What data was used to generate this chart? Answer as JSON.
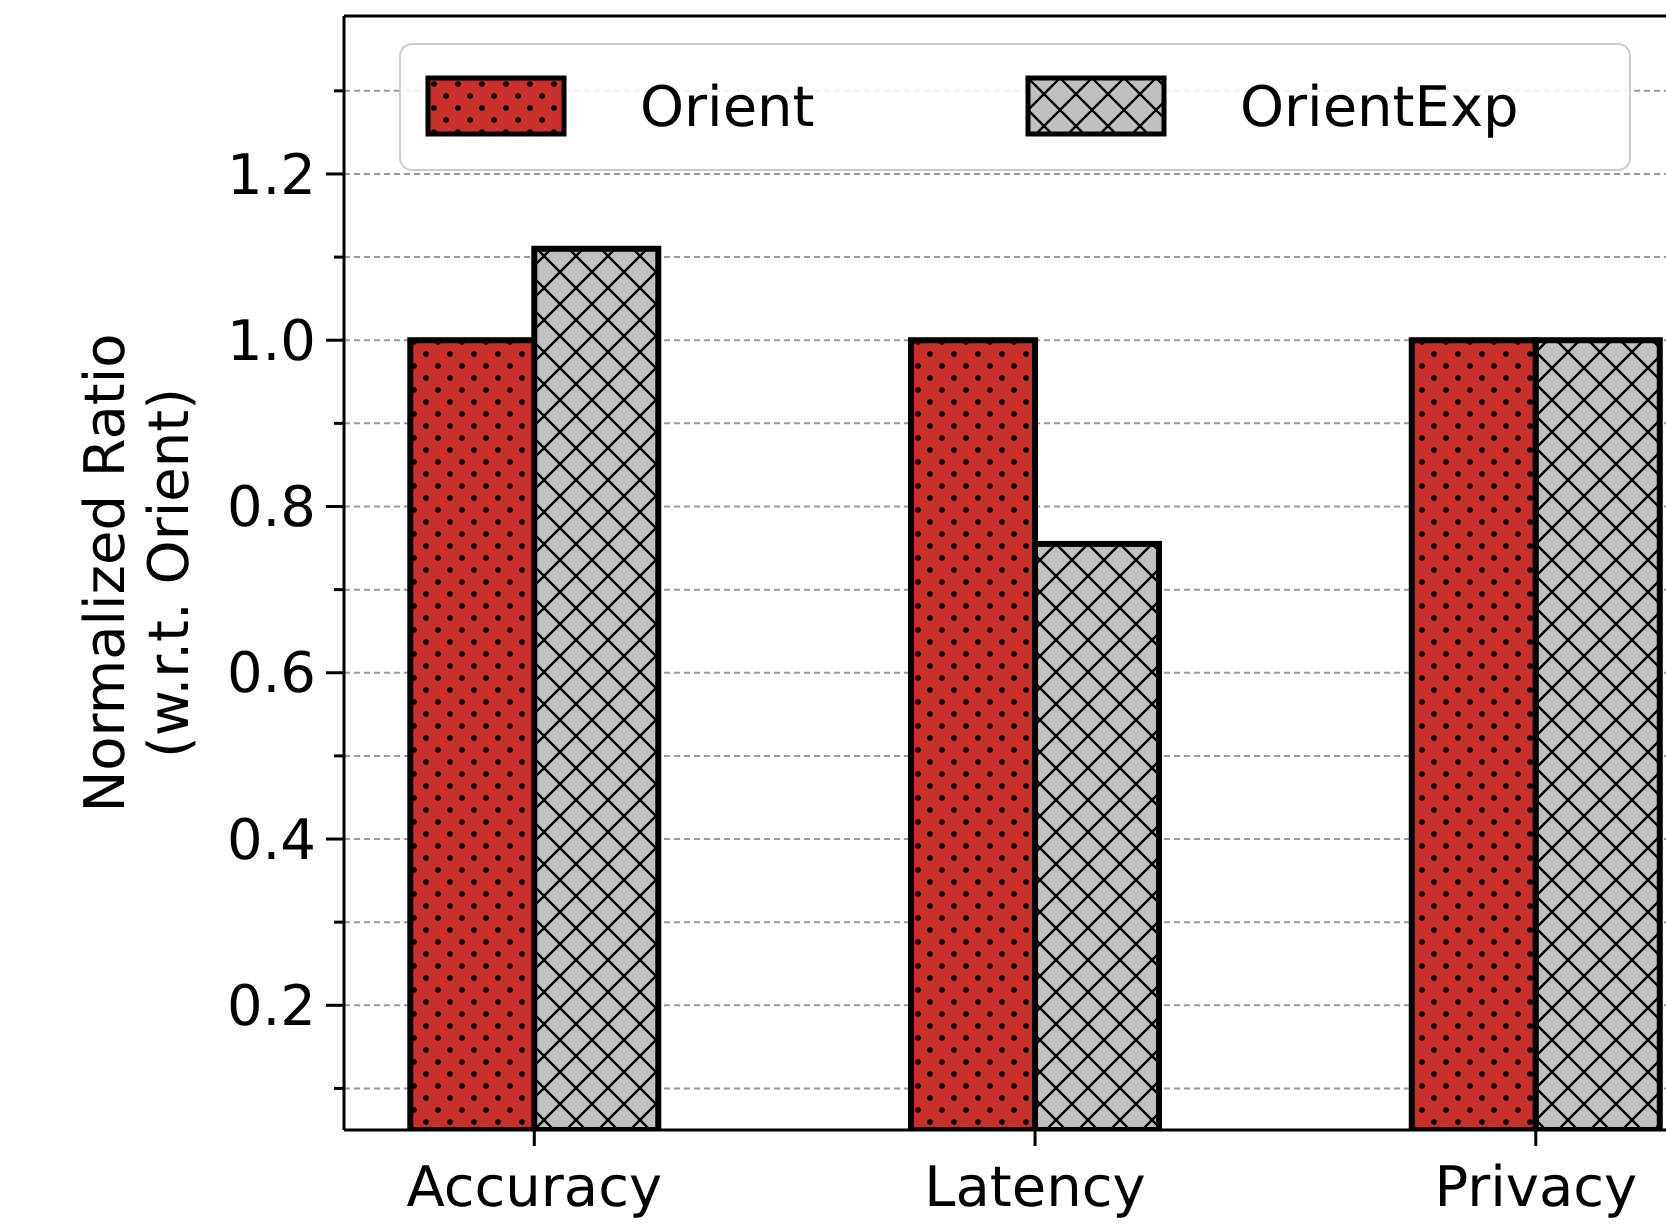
{
  "chart_data": {
    "type": "bar",
    "ylabel": "Normalized Ratio\n(w.r.t. Orient)",
    "categories": [
      "Accuracy",
      "Latency",
      "Privacy"
    ],
    "series": [
      {
        "name": "Orient",
        "color": "#c8302b",
        "values": [
          1.0,
          1.0,
          1.0
        ]
      },
      {
        "name": "OrientExp",
        "color": "#c0c0c0",
        "values": [
          1.11,
          0.755,
          1.0
        ]
      }
    ],
    "ylim": [
      0.05,
      1.39
    ],
    "yticks": [
      {
        "value": 0.1,
        "label": null
      },
      0.2,
      {
        "value": 0.3,
        "label": null
      },
      0.4,
      {
        "value": 0.5,
        "label": null
      },
      0.6,
      {
        "value": 0.7,
        "label": null
      },
      0.8,
      {
        "value": 0.9,
        "label": null
      },
      {
        "value": 1.0,
        "label": "1.0"
      },
      {
        "value": 1.1,
        "label": null
      },
      1.2,
      {
        "value": 1.3,
        "label": null
      }
    ],
    "grid": true,
    "legend": "top"
  }
}
